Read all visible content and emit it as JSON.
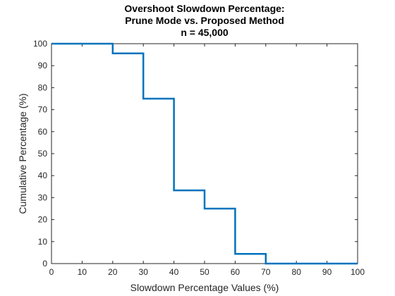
{
  "chart_data": {
    "type": "line",
    "style": "stairs-descending",
    "title_lines": [
      "Overshoot Slowdown Percentage:",
      "Prune Mode vs. Proposed Method",
      "n = 45,000"
    ],
    "xlabel": "Slowdown Percentage Values (%)",
    "ylabel": "Cumulative Percentage (%)",
    "xlim": [
      0,
      100
    ],
    "ylim": [
      0,
      100
    ],
    "xticks": [
      0,
      10,
      20,
      30,
      40,
      50,
      60,
      70,
      80,
      90,
      100
    ],
    "yticks": [
      0,
      10,
      20,
      30,
      40,
      50,
      60,
      70,
      80,
      90,
      100
    ],
    "grid": false,
    "series": [
      {
        "color": "#0072BD",
        "x": [
          0,
          20,
          30,
          40,
          50,
          60,
          70,
          100
        ],
        "y": [
          100,
          95.6,
          75,
          33.3,
          25,
          4.4,
          0,
          0
        ]
      }
    ]
  }
}
